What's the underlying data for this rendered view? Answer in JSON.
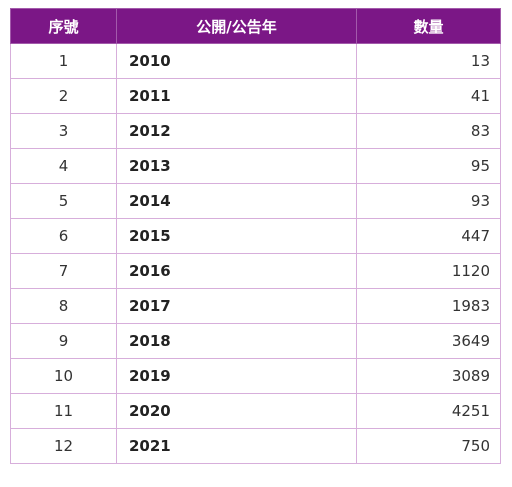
{
  "table": {
    "headers": [
      "序號",
      "公開/公告年",
      "數量"
    ],
    "rows": [
      {
        "seq": "1",
        "year": "2010",
        "count": "13"
      },
      {
        "seq": "2",
        "year": "2011",
        "count": "41"
      },
      {
        "seq": "3",
        "year": "2012",
        "count": "83"
      },
      {
        "seq": "4",
        "year": "2013",
        "count": "95"
      },
      {
        "seq": "5",
        "year": "2014",
        "count": "93"
      },
      {
        "seq": "6",
        "year": "2015",
        "count": "447"
      },
      {
        "seq": "7",
        "year": "2016",
        "count": "1120"
      },
      {
        "seq": "8",
        "year": "2017",
        "count": "1983"
      },
      {
        "seq": "9",
        "year": "2018",
        "count": "3649"
      },
      {
        "seq": "10",
        "year": "2019",
        "count": "3089"
      },
      {
        "seq": "11",
        "year": "2020",
        "count": "4251"
      },
      {
        "seq": "12",
        "year": "2021",
        "count": "750"
      }
    ]
  },
  "colors": {
    "header_bg": "#7b1786",
    "border": "#d7aedb"
  }
}
